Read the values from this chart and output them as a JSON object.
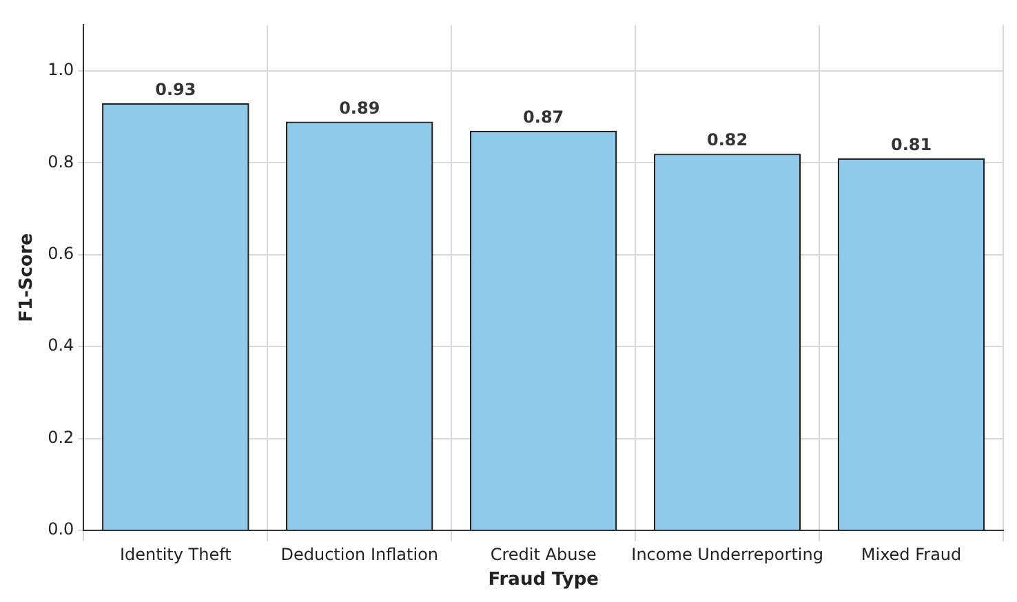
{
  "chart_data": {
    "type": "bar",
    "xlabel": "Fraud Type",
    "ylabel": "F1-Score",
    "categories": [
      "Identity Theft",
      "Deduction Inflation",
      "Credit Abuse",
      "Income Underreporting",
      "Mixed Fraud"
    ],
    "values": [
      0.93,
      0.89,
      0.87,
      0.82,
      0.81
    ],
    "color": "#90caea",
    "ylim": [
      0,
      1.1
    ],
    "yticks": [
      {
        "value": 0,
        "label": "0.0"
      },
      {
        "value": 0.2,
        "label": "0.2"
      },
      {
        "value": 0.4,
        "label": "0.4"
      },
      {
        "value": 0.6,
        "label": "0.6"
      },
      {
        "value": 0.8,
        "label": "0.8"
      },
      {
        "value": 1,
        "label": "1.0"
      }
    ],
    "grid": true,
    "data_labels": true
  }
}
